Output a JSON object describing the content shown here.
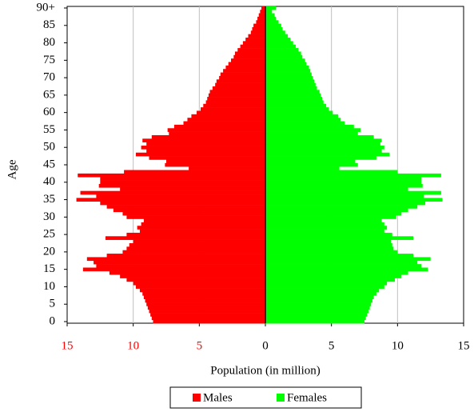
{
  "chart_data": {
    "type": "pyramid",
    "y_label": "Age",
    "x_label": "Population (in million)",
    "categories": [
      0,
      null,
      null,
      null,
      null,
      5,
      null,
      null,
      null,
      null,
      10,
      null,
      null,
      null,
      null,
      15,
      null,
      null,
      null,
      null,
      20,
      null,
      null,
      null,
      null,
      25,
      null,
      null,
      null,
      null,
      30,
      null,
      null,
      null,
      null,
      35,
      null,
      null,
      null,
      null,
      40,
      null,
      null,
      null,
      null,
      45,
      null,
      null,
      null,
      null,
      50,
      null,
      null,
      null,
      null,
      55,
      null,
      null,
      null,
      null,
      60,
      null,
      null,
      null,
      null,
      65,
      null,
      null,
      null,
      null,
      70,
      null,
      null,
      null,
      null,
      75,
      null,
      null,
      null,
      null,
      80,
      null,
      null,
      null,
      null,
      85,
      null,
      null,
      null,
      null,
      "90+"
    ],
    "series": [
      {
        "name": "Males",
        "color": "#ff0000",
        "values": [
          -8.5,
          -8.6,
          -8.7,
          -8.8,
          -8.9,
          -9.0,
          -9.1,
          -9.2,
          -9.3,
          -9.5,
          -9.8,
          -10.0,
          -10.5,
          -11.0,
          -11.8,
          -13.8,
          -12.8,
          -13.0,
          -13.5,
          -12.0,
          -10.8,
          -10.5,
          -10.3,
          -10.0,
          -12.1,
          -10.5,
          -9.5,
          -9.7,
          -9.4,
          -9.2,
          -10.5,
          -10.8,
          -11.5,
          -12.0,
          -12.5,
          -14.3,
          -12.8,
          -14.0,
          -11.0,
          -12.6,
          -12.5,
          -12.5,
          -14.2,
          -10.7,
          -5.8,
          -7.6,
          -7.5,
          -8.8,
          -9.8,
          -9.0,
          -9.4,
          -9.0,
          -9.3,
          -8.6,
          -7.3,
          -7.4,
          -6.9,
          -6.2,
          -5.9,
          -5.6,
          -5.2,
          -4.9,
          -4.7,
          -4.5,
          -4.4,
          -4.3,
          -4.2,
          -4.0,
          -3.8,
          -3.7,
          -3.5,
          -3.4,
          -3.2,
          -3.0,
          -2.8,
          -2.6,
          -2.4,
          -2.3,
          -2.1,
          -1.9,
          -1.7,
          -1.5,
          -1.3,
          -1.1,
          -1.0,
          -0.9,
          -0.7,
          -0.6,
          -0.5,
          -0.4,
          -0.3
        ]
      },
      {
        "name": "Females",
        "color": "#00ff00",
        "values": [
          7.5,
          7.6,
          7.7,
          7.8,
          7.9,
          8.0,
          8.1,
          8.2,
          8.4,
          8.6,
          9.0,
          9.2,
          9.8,
          10.3,
          10.8,
          12.3,
          11.8,
          11.5,
          12.5,
          11.2,
          10.0,
          9.7,
          9.6,
          9.5,
          11.2,
          9.6,
          9.0,
          9.2,
          9.0,
          8.8,
          9.9,
          10.3,
          10.8,
          11.5,
          12.1,
          13.4,
          12.0,
          13.3,
          10.8,
          11.9,
          11.8,
          11.8,
          13.3,
          10.0,
          5.6,
          7.0,
          6.8,
          8.4,
          9.4,
          8.8,
          9.0,
          8.7,
          8.8,
          8.2,
          7.0,
          7.2,
          6.7,
          6.0,
          5.7,
          5.5,
          5.1,
          4.8,
          4.6,
          4.4,
          4.3,
          4.2,
          4.1,
          3.9,
          3.8,
          3.7,
          3.6,
          3.5,
          3.4,
          3.3,
          3.1,
          3.0,
          2.8,
          2.7,
          2.5,
          2.3,
          2.1,
          1.9,
          1.7,
          1.5,
          1.3,
          1.2,
          1.0,
          0.8,
          0.7,
          0.5,
          0.8
        ]
      }
    ],
    "xlim": [
      -15,
      15
    ],
    "xticks": [
      {
        "value": -15,
        "label": "15"
      },
      {
        "value": -10,
        "label": "10"
      },
      {
        "value": -5,
        "label": "5"
      },
      0,
      5,
      10,
      15
    ],
    "grid": true
  }
}
